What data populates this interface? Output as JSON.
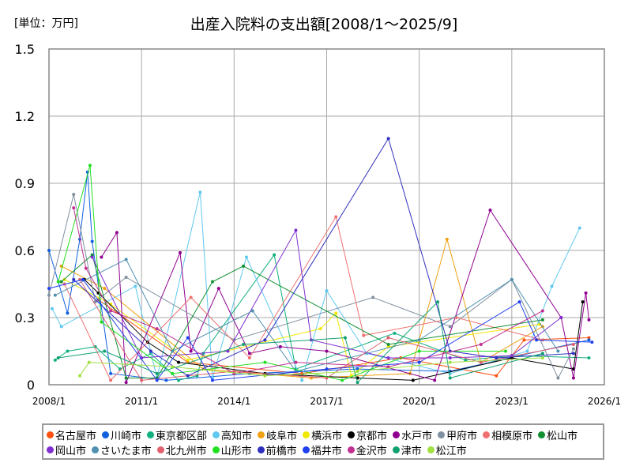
{
  "chart_data": {
    "type": "line",
    "title": "出産入院料の支出額[2008/1～2025/9]",
    "unit_label": "[単位：万円]",
    "xlabel": "",
    "ylabel": "",
    "xlim": [
      2008,
      2026
    ],
    "ylim": [
      0,
      1.5
    ],
    "x_ticks": [
      {
        "v": 2008,
        "label": "2008/1"
      },
      {
        "v": 2011,
        "label": "2011/1"
      },
      {
        "v": 2014,
        "label": "2014/1"
      },
      {
        "v": 2017,
        "label": "2017/1"
      },
      {
        "v": 2020,
        "label": "2020/1"
      },
      {
        "v": 2023,
        "label": "2023/1"
      },
      {
        "v": 2026,
        "label": "2026/1"
      }
    ],
    "y_ticks": [
      {
        "v": 0,
        "label": "0"
      },
      {
        "v": 0.3,
        "label": "0.3"
      },
      {
        "v": 0.6,
        "label": "0.6"
      },
      {
        "v": 0.9,
        "label": "0.9"
      },
      {
        "v": 1.2,
        "label": "1.2"
      },
      {
        "v": 1.5,
        "label": "1.5"
      }
    ],
    "grid": true,
    "legend_position": "bottom",
    "series": [
      {
        "name": "名古屋市",
        "color": "#ff5010",
        "points": [
          [
            2009.6,
            0.38
          ],
          [
            2012.5,
            0.1
          ],
          [
            2016.2,
            0.05
          ],
          [
            2019.4,
            0.12
          ],
          [
            2022.5,
            0.04
          ],
          [
            2023.4,
            0.2
          ],
          [
            2025.5,
            0.21
          ]
        ]
      },
      {
        "name": "川崎市",
        "color": "#1060e0",
        "points": [
          [
            2008.0,
            0.6
          ],
          [
            2008.6,
            0.32
          ],
          [
            2009.0,
            0.65
          ],
          [
            2009.25,
            0.95
          ],
          [
            2009.4,
            0.64
          ],
          [
            2010.0,
            0.05
          ],
          [
            2011.8,
            0.02
          ],
          [
            2014.5,
            0.05
          ],
          [
            2018.0,
            0.07
          ],
          [
            2021.0,
            0.06
          ],
          [
            2025.5,
            0.2
          ]
        ]
      },
      {
        "name": "東京都区部",
        "color": "#10b080",
        "points": [
          [
            2008.2,
            0.11
          ],
          [
            2008.6,
            0.15
          ],
          [
            2009.5,
            0.17
          ],
          [
            2010.3,
            0.07
          ],
          [
            2011.3,
            0.14
          ],
          [
            2012.2,
            0.02
          ],
          [
            2012.8,
            0.04
          ],
          [
            2013.0,
            0.14
          ],
          [
            2015.3,
            0.58
          ],
          [
            2016.0,
            0.07
          ],
          [
            2019.2,
            0.23
          ],
          [
            2021.5,
            0.11
          ],
          [
            2023.0,
            0.13
          ],
          [
            2025.5,
            0.12
          ]
        ]
      },
      {
        "name": "高知市",
        "color": "#60c8f0",
        "points": [
          [
            2008.1,
            0.34
          ],
          [
            2008.4,
            0.26
          ],
          [
            2010.8,
            0.44
          ],
          [
            2011.5,
            0.03
          ],
          [
            2012.9,
            0.86
          ],
          [
            2013.3,
            0.03
          ],
          [
            2014.4,
            0.57
          ],
          [
            2016.2,
            0.02
          ],
          [
            2017.0,
            0.42
          ],
          [
            2018.3,
            0.14
          ],
          [
            2021.0,
            0.05
          ],
          [
            2023.5,
            0.15
          ],
          [
            2024.3,
            0.44
          ],
          [
            2025.2,
            0.7
          ]
        ]
      },
      {
        "name": "岐阜市",
        "color": "#f0a010",
        "points": [
          [
            2008.4,
            0.53
          ],
          [
            2009.8,
            0.43
          ],
          [
            2013.0,
            0.07
          ],
          [
            2016.5,
            0.03
          ],
          [
            2019.7,
            0.05
          ],
          [
            2020.9,
            0.65
          ],
          [
            2022.0,
            0.1
          ],
          [
            2024.0,
            0.26
          ]
        ]
      },
      {
        "name": "横浜市",
        "color": "#f0e800",
        "points": [
          [
            2008.5,
            0.47
          ],
          [
            2010.0,
            0.36
          ],
          [
            2012.5,
            0.11
          ],
          [
            2016.8,
            0.25
          ],
          [
            2017.3,
            0.32
          ],
          [
            2017.8,
            0.04
          ],
          [
            2019.0,
            0.17
          ],
          [
            2023.9,
            0.27
          ]
        ]
      },
      {
        "name": "京都市",
        "color": "#000000",
        "points": [
          [
            2009.15,
            0.47
          ],
          [
            2009.6,
            0.41
          ],
          [
            2011.2,
            0.19
          ],
          [
            2012.2,
            0.1
          ],
          [
            2015.0,
            0.05
          ],
          [
            2018.0,
            0.03
          ],
          [
            2019.8,
            0.02
          ],
          [
            2023.0,
            0.12
          ],
          [
            2025.0,
            0.07
          ],
          [
            2025.3,
            0.37
          ]
        ]
      },
      {
        "name": "水戸市",
        "color": "#900090",
        "points": [
          [
            2009.7,
            0.57
          ],
          [
            2010.2,
            0.68
          ],
          [
            2010.5,
            0.01
          ],
          [
            2012.25,
            0.59
          ],
          [
            2012.6,
            0.15
          ],
          [
            2013.5,
            0.43
          ],
          [
            2014.5,
            0.14
          ],
          [
            2015.5,
            0.17
          ],
          [
            2017.0,
            0.15
          ],
          [
            2020.5,
            0.02
          ],
          [
            2022.3,
            0.78
          ],
          [
            2024.6,
            0.3
          ],
          [
            2025.0,
            0.03
          ],
          [
            2025.4,
            0.41
          ],
          [
            2025.5,
            0.29
          ]
        ]
      },
      {
        "name": "甲府市",
        "color": "#8090a0",
        "points": [
          [
            2008.0,
            0.4
          ],
          [
            2008.8,
            0.85
          ],
          [
            2009.5,
            0.37
          ],
          [
            2010.5,
            0.48
          ],
          [
            2014.0,
            0.2
          ],
          [
            2018.5,
            0.39
          ],
          [
            2021.0,
            0.26
          ],
          [
            2023.0,
            0.47
          ],
          [
            2024.5,
            0.03
          ],
          [
            2025.0,
            0.16
          ]
        ]
      },
      {
        "name": "相模原市",
        "color": "#f07070",
        "points": [
          [
            2008.5,
            0.45
          ],
          [
            2010.0,
            0.02
          ],
          [
            2012.6,
            0.39
          ],
          [
            2014.5,
            0.12
          ],
          [
            2017.3,
            0.75
          ],
          [
            2018.2,
            0.22
          ],
          [
            2021.2,
            0.3
          ],
          [
            2024.0,
            0.2
          ]
        ]
      },
      {
        "name": "松山市",
        "color": "#109030",
        "points": [
          [
            2008.4,
            0.46
          ],
          [
            2009.4,
            0.58
          ],
          [
            2010.5,
            0.03
          ],
          [
            2011.5,
            0.03
          ],
          [
            2013.3,
            0.46
          ],
          [
            2014.3,
            0.53
          ],
          [
            2019.0,
            0.18
          ],
          [
            2024.0,
            0.29
          ]
        ]
      },
      {
        "name": "岡山市",
        "color": "#8030d0",
        "points": [
          [
            2009.4,
            0.57
          ],
          [
            2011.0,
            0.12
          ],
          [
            2013.8,
            0.15
          ],
          [
            2016.0,
            0.69
          ],
          [
            2016.5,
            0.2
          ],
          [
            2019.0,
            0.12
          ],
          [
            2021.0,
            0.12
          ],
          [
            2023.0,
            0.13
          ],
          [
            2024.6,
            0.3
          ]
        ]
      },
      {
        "name": "さいたま市",
        "color": "#5090b0",
        "points": [
          [
            2008.2,
            0.4
          ],
          [
            2010.5,
            0.56
          ],
          [
            2012.0,
            0.15
          ],
          [
            2014.6,
            0.33
          ],
          [
            2016.0,
            0.06
          ],
          [
            2020.0,
            0.2
          ],
          [
            2023.0,
            0.47
          ],
          [
            2024.5,
            0.15
          ]
        ]
      },
      {
        "name": "北九州市",
        "color": "#e06070",
        "points": [
          [
            2009.0,
            0.47
          ],
          [
            2011.0,
            0.02
          ],
          [
            2014.0,
            0.06
          ],
          [
            2017.0,
            0.03
          ],
          [
            2019.0,
            0.21
          ],
          [
            2022.0,
            0.1
          ],
          [
            2025.0,
            0.18
          ]
        ]
      },
      {
        "name": "山形市",
        "color": "#20e020",
        "points": [
          [
            2008.3,
            0.46
          ],
          [
            2009.33,
            0.98
          ],
          [
            2009.7,
            0.28
          ],
          [
            2012.0,
            0.05
          ],
          [
            2015.0,
            0.1
          ],
          [
            2017.5,
            0.02
          ],
          [
            2020.0,
            0.15
          ],
          [
            2022.8,
            0.15
          ]
        ]
      },
      {
        "name": "前橋市",
        "color": "#3030c0",
        "points": [
          [
            2008.8,
            0.47
          ],
          [
            2011.3,
            0.15
          ],
          [
            2012.5,
            0.04
          ],
          [
            2015.0,
            0.2
          ],
          [
            2019.0,
            1.1
          ],
          [
            2021.0,
            0.15
          ],
          [
            2022.5,
            0.12
          ],
          [
            2025.0,
            0.14
          ]
        ]
      },
      {
        "name": "福井市",
        "color": "#2040f0",
        "points": [
          [
            2008.0,
            0.43
          ],
          [
            2009.1,
            0.47
          ],
          [
            2011.5,
            0.02
          ],
          [
            2012.5,
            0.21
          ],
          [
            2013.3,
            0.02
          ],
          [
            2017.0,
            0.07
          ],
          [
            2020.0,
            0.1
          ],
          [
            2023.25,
            0.37
          ],
          [
            2023.8,
            0.2
          ],
          [
            2025.6,
            0.19
          ]
        ]
      },
      {
        "name": "金沢市",
        "color": "#c03090",
        "points": [
          [
            2008.8,
            0.79
          ],
          [
            2009.2,
            0.52
          ],
          [
            2010.0,
            0.33
          ],
          [
            2011.5,
            0.25
          ],
          [
            2014.0,
            0.05
          ],
          [
            2016.0,
            0.1
          ],
          [
            2019.0,
            0.08
          ],
          [
            2022.0,
            0.18
          ],
          [
            2024.0,
            0.33
          ]
        ]
      },
      {
        "name": "津市",
        "color": "#10a070",
        "points": [
          [
            2008.3,
            0.12
          ],
          [
            2009.8,
            0.15
          ],
          [
            2011.5,
            0.05
          ],
          [
            2014.3,
            0.18
          ],
          [
            2017.6,
            0.21
          ],
          [
            2018.0,
            0.01
          ],
          [
            2020.6,
            0.37
          ],
          [
            2021.0,
            0.03
          ],
          [
            2024.0,
            0.14
          ]
        ]
      },
      {
        "name": "松江市",
        "color": "#a0e040",
        "points": [
          [
            2009.0,
            0.04
          ],
          [
            2009.3,
            0.1
          ],
          [
            2012.0,
            0.08
          ],
          [
            2015.0,
            0.04
          ],
          [
            2018.0,
            0.06
          ],
          [
            2021.0,
            0.1
          ],
          [
            2024.0,
            0.12
          ]
        ]
      }
    ]
  }
}
